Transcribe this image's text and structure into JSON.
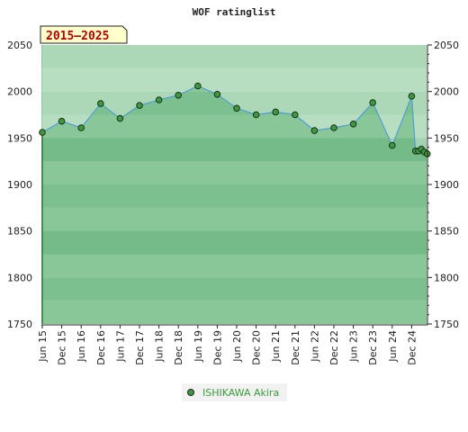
{
  "chart_data": {
    "type": "line",
    "title": "WOF ratinglist",
    "badge": "2015–2025",
    "ylim": [
      1750,
      2050
    ],
    "yticks": [
      1750,
      1800,
      1850,
      1900,
      1950,
      2000,
      2050
    ],
    "x_tick_labels": [
      "Jun 15",
      "Dec 15",
      "Jun 16",
      "Dec 16",
      "Jun 17",
      "Dec 17",
      "Jun 18",
      "Dec 18",
      "Jun 19",
      "Dec 19",
      "Jun 20",
      "Dec 20",
      "Jun 21",
      "Dec 21",
      "Jun 22",
      "Dec 22",
      "Jun 23",
      "Dec 23",
      "Jun 24",
      "Dec 24"
    ],
    "series": [
      {
        "name": "ISHIKAWA Akira",
        "color": "#3c9a3c",
        "line_color": "#4f9fd6",
        "points": [
          {
            "x": 0.0,
            "y": 1956
          },
          {
            "x": 1.0,
            "y": 1968
          },
          {
            "x": 2.0,
            "y": 1961
          },
          {
            "x": 3.0,
            "y": 1987
          },
          {
            "x": 4.0,
            "y": 1971
          },
          {
            "x": 5.0,
            "y": 1985
          },
          {
            "x": 6.0,
            "y": 1991
          },
          {
            "x": 7.0,
            "y": 1996
          },
          {
            "x": 8.0,
            "y": 2006
          },
          {
            "x": 9.0,
            "y": 1997
          },
          {
            "x": 10.0,
            "y": 1982
          },
          {
            "x": 11.0,
            "y": 1975
          },
          {
            "x": 12.0,
            "y": 1978
          },
          {
            "x": 13.0,
            "y": 1975
          },
          {
            "x": 14.0,
            "y": 1958
          },
          {
            "x": 15.0,
            "y": 1961
          },
          {
            "x": 16.0,
            "y": 1965
          },
          {
            "x": 17.0,
            "y": 1988
          },
          {
            "x": 18.0,
            "y": 1942
          },
          {
            "x": 19.0,
            "y": 1995
          },
          {
            "x": 19.2,
            "y": 1936
          },
          {
            "x": 19.35,
            "y": 1936
          },
          {
            "x": 19.5,
            "y": 1938
          },
          {
            "x": 19.65,
            "y": 1935
          },
          {
            "x": 19.8,
            "y": 1933
          }
        ]
      }
    ],
    "grid": true,
    "legend": "bottom"
  }
}
